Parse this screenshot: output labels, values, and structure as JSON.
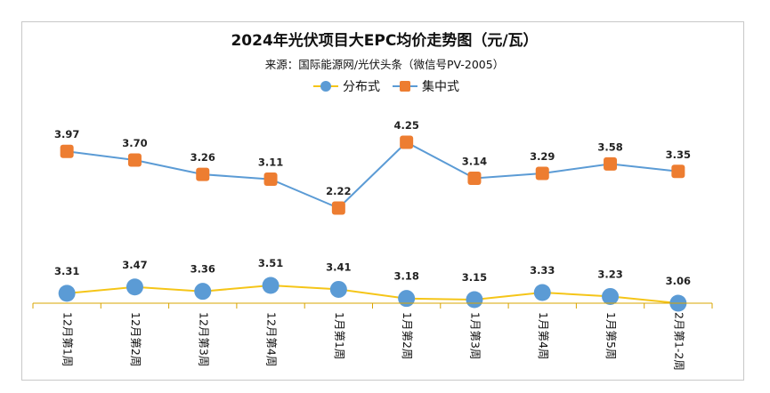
{
  "chart_data": {
    "type": "line",
    "title": "2024年光伏项目大EPC均价走势图（元/瓦）",
    "subtitle": "来源：国际能源网/光伏头条（微信号PV-2005）",
    "categories": [
      "12月第1周",
      "12月第2周",
      "12月第3周",
      "12月第4周",
      "1月第1周",
      "1月第2周",
      "1月第3周",
      "1月第4周",
      "1月第5周",
      "2月第1-2周"
    ],
    "series": [
      {
        "name": "分布式",
        "values": [
          3.31,
          3.47,
          3.36,
          3.51,
          3.41,
          3.18,
          3.15,
          3.33,
          3.23,
          3.06
        ],
        "line_color": "#f5c518",
        "marker": "circle",
        "marker_color": "#5b9bd5"
      },
      {
        "name": "集中式",
        "values": [
          3.97,
          3.7,
          3.26,
          3.11,
          2.22,
          4.25,
          3.14,
          3.29,
          3.58,
          3.35
        ],
        "line_color": "#5b9bd5",
        "marker": "rounded-square",
        "marker_color": "#ed7d31"
      }
    ],
    "legend_position": "top-center",
    "grid": false,
    "xlabel": "",
    "ylabel": ""
  }
}
